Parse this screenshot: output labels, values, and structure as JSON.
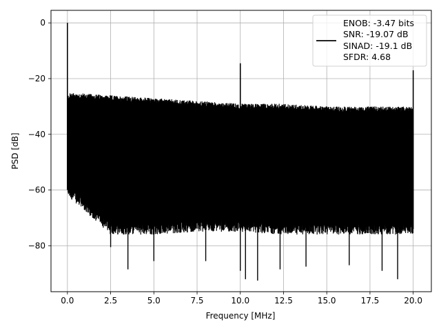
{
  "chart_data": {
    "type": "line",
    "title": "",
    "xlabel": "Frequency [MHz]",
    "ylabel": "PSD [dB]",
    "xlim": [
      -0.95,
      21.05
    ],
    "ylim": [
      -96.5,
      4.5
    ],
    "xticks": [
      0.0,
      2.5,
      5.0,
      7.5,
      10.0,
      12.5,
      15.0,
      17.5,
      20.0
    ],
    "xtick_labels": [
      "0.0",
      "2.5",
      "5.0",
      "7.5",
      "10.0",
      "12.5",
      "15.0",
      "17.5",
      "20.0"
    ],
    "yticks": [
      0,
      -20,
      -40,
      -60,
      -80
    ],
    "ytick_labels": [
      "0",
      "−20",
      "−40",
      "−60",
      "−80"
    ],
    "grid": true,
    "legend_position": "top-right",
    "series": [
      {
        "color": "#000000",
        "description": "dense noise floor oscillating between upper and lower envelope",
        "upper_envelope": {
          "x": [
            0.0,
            0.2,
            2.5,
            5.0,
            7.5,
            10.0,
            12.5,
            15.0,
            17.5,
            20.0
          ],
          "y": [
            -27,
            -26,
            -27,
            -28,
            -29,
            -30,
            -30,
            -31,
            -31,
            -31
          ]
        },
        "lower_envelope": {
          "x": [
            0.0,
            2.5,
            5.0,
            7.5,
            10.0,
            12.5,
            15.0,
            17.5,
            20.0
          ],
          "y": [
            -60,
            -74,
            -74,
            -73,
            -73,
            -74,
            -74,
            -74,
            -74
          ]
        },
        "spikes": [
          {
            "x": 0.0,
            "y": 0
          },
          {
            "x": 10.0,
            "y": -14.5
          },
          {
            "x": 20.0,
            "y": -17
          }
        ],
        "dips": [
          {
            "x": 2.5,
            "y": -80.5
          },
          {
            "x": 3.5,
            "y": -88.5
          },
          {
            "x": 5.0,
            "y": -85.5
          },
          {
            "x": 8.0,
            "y": -85.5
          },
          {
            "x": 10.0,
            "y": -89
          },
          {
            "x": 10.3,
            "y": -92
          },
          {
            "x": 11.0,
            "y": -92.5
          },
          {
            "x": 12.3,
            "y": -88.5
          },
          {
            "x": 13.8,
            "y": -87.5
          },
          {
            "x": 16.3,
            "y": -87
          },
          {
            "x": 18.2,
            "y": -89
          },
          {
            "x": 19.1,
            "y": -92
          }
        ]
      }
    ],
    "legend_entries": [
      "ENOB: -3.47 bits",
      "SNR: -19.07 dB",
      "SINAD: -19.1 dB",
      "SFDR: 4.68"
    ]
  }
}
